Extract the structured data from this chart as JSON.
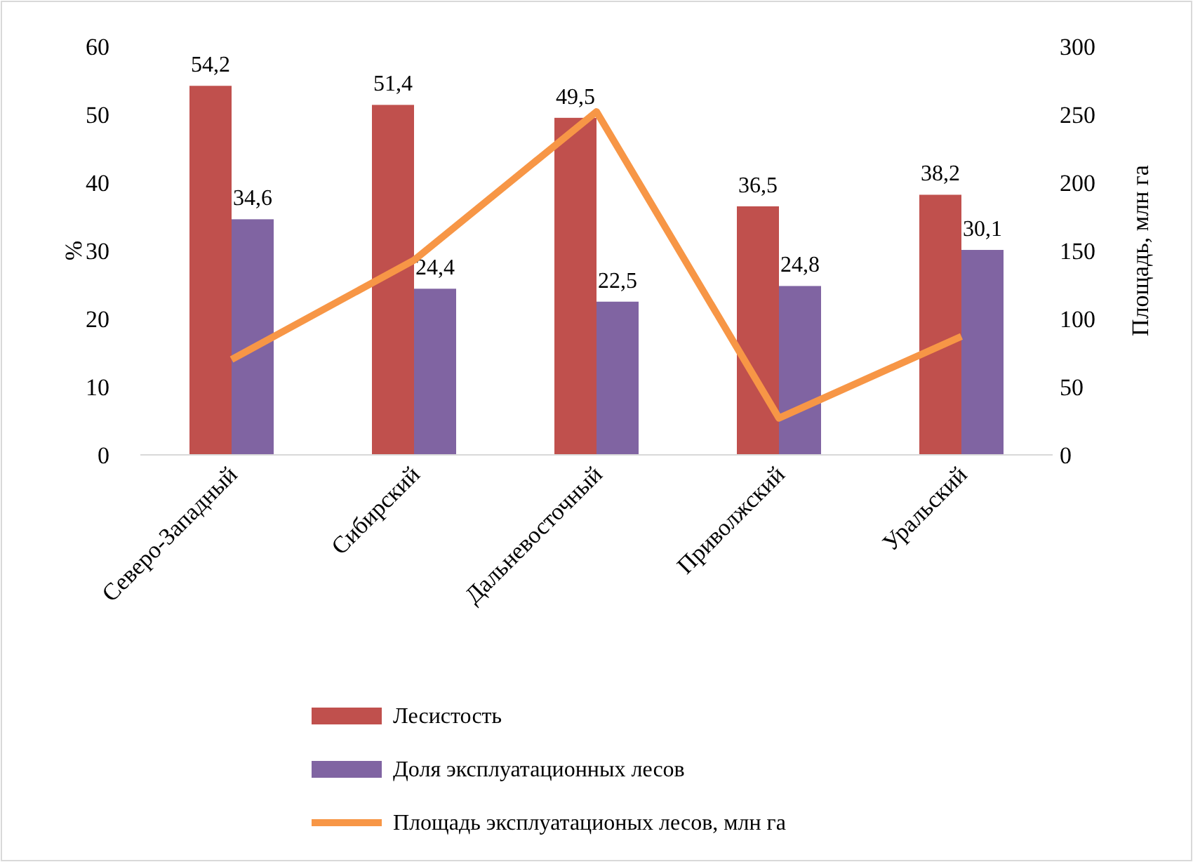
{
  "chart_data": {
    "type": "bar",
    "categories": [
      "Северо-Западный",
      "Сибирский",
      "Дальневосточный",
      "Приволжский",
      "Уральский"
    ],
    "ylabel": "%",
    "y2label": "Площадь, млн га",
    "ylim": [
      0,
      60
    ],
    "yticks": [
      0,
      10,
      20,
      30,
      40,
      50,
      60
    ],
    "y2lim": [
      0,
      300
    ],
    "y2ticks": [
      0,
      50,
      100,
      150,
      200,
      250,
      300
    ],
    "series": [
      {
        "name": "Лесистость",
        "color": "#c0504d",
        "values": [
          54.2,
          51.4,
          49.5,
          36.5,
          38.2
        ],
        "value_labels": [
          "54,2",
          "51,4",
          "49,5",
          "36,5",
          "38,2"
        ]
      },
      {
        "name": "Доля эксплуатационных лесов",
        "color": "#8064a2",
        "values": [
          34.6,
          24.4,
          22.5,
          24.8,
          30.1
        ],
        "value_labels": [
          "34,6",
          "24,4",
          "22,5",
          "24,8",
          "30,1"
        ]
      },
      {
        "name": "Площадь эксплуатационых лесов, млн га",
        "type": "line",
        "axis": "y2",
        "color": "#f79646",
        "values": [
          70,
          143,
          252,
          27,
          87
        ],
        "marker": "none"
      }
    ],
    "legend": "bottom",
    "grid": false
  }
}
